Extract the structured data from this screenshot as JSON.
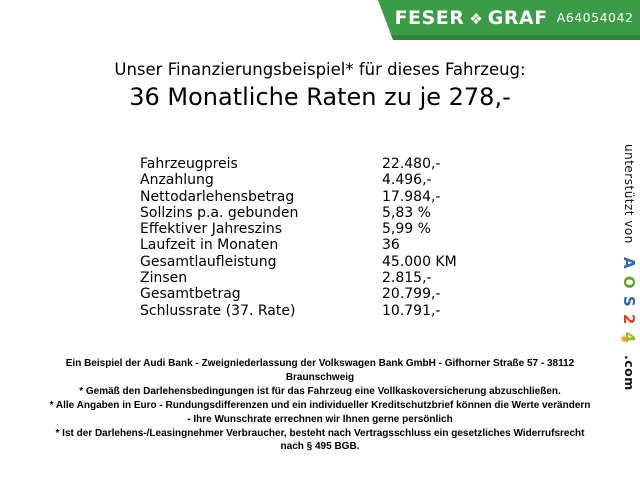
{
  "header": {
    "brand_first": "FESER",
    "brand_mark_glyph": "❖",
    "brand_second": "GRAF",
    "vehicle_ref": "A64054042",
    "banner_style": "background:#3b9b46",
    "banner_shade_style": "background:#2f8539",
    "banner_green": "#3b9b46",
    "banner_shade_green": "#2f8539"
  },
  "title": {
    "line1": "Unser Finanzierungsbeispiel* für dieses Fahrzeug:",
    "line2": "36 Monatliche Raten zu je 278,-"
  },
  "finance_table": {
    "rows": [
      {
        "label": "Fahrzeugpreis",
        "value": "22.480,-"
      },
      {
        "label": "Anzahlung",
        "value": "4.496,-"
      },
      {
        "label": "Nettodarlehensbetrag",
        "value": "17.984,-"
      },
      {
        "label": "Sollzins p.a. gebunden",
        "value": "5,83 %"
      },
      {
        "label": "Effektiver Jahreszins",
        "value": "5,99 %"
      },
      {
        "label": "Laufzeit in Monaten",
        "value": "36"
      },
      {
        "label": "Gesamtlaufleistung",
        "value": "45.000 KM"
      },
      {
        "label": "Zinsen",
        "value": "2.815,-"
      },
      {
        "label": "Gesamtbetrag",
        "value": "20.799,-"
      },
      {
        "label": "Schlussrate (37. Rate)",
        "value": "10.791,-"
      }
    ]
  },
  "footer": {
    "lines": [
      "Ein Beispiel der Audi Bank - Zweigniederlassung der Volkswagen Bank GmbH - Gifhorner Straße 57 - 38112",
      "Braunschweig",
      "* Gemäß den Darlehensbedingungen ist für das Fahrzeug eine Vollkaskoversicherung abzuschließen.",
      "* Alle Angaben in Euro - Rundungsdifferenzen und ein individueller Kreditschutzbrief können die Werte verändern",
      "- Ihre Wunschrate errechnen wir Ihnen gerne persönlich",
      "* Ist der Darlehens-/Leasingnehmer Verbraucher, besteht nach Vertragsschluss ein gesetzliches Widerrufsrecht",
      "nach § 495 BGB."
    ]
  },
  "sidebar": {
    "supported_by": "unterstützt von",
    "logo_letters": [
      {
        "char": "A",
        "style": "color:#3465a8"
      },
      {
        "char": "O",
        "style": "color:#61a427"
      },
      {
        "char": "S",
        "style": "color:#3465a8"
      },
      {
        "char": "2",
        "style": "color:#d8491b"
      }
    ],
    "logo_last_letter": {
      "char": "4",
      "style": "color:#9ab618"
    },
    "logo_star": {
      "char": "✱",
      "style": "color:#f0a01e"
    },
    "tld": ".com"
  }
}
